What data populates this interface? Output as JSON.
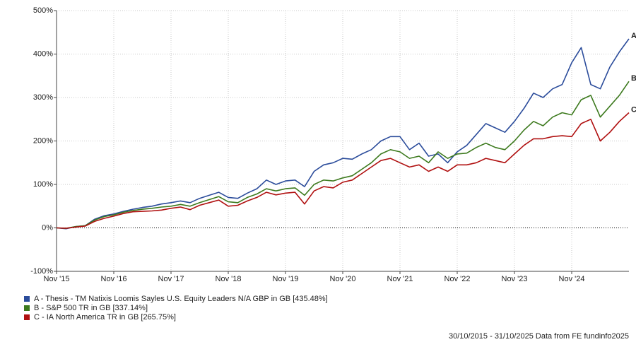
{
  "chart_data": {
    "type": "line",
    "categories": [
      "Nov '15",
      null,
      null,
      null,
      null,
      null,
      "Nov '16",
      null,
      null,
      null,
      null,
      null,
      "Nov '17",
      null,
      null,
      null,
      null,
      null,
      "Nov '18",
      null,
      null,
      null,
      null,
      null,
      "Nov '19",
      null,
      null,
      null,
      null,
      null,
      "Nov '20",
      null,
      null,
      null,
      null,
      null,
      "Nov '21",
      null,
      null,
      null,
      null,
      null,
      "Nov '22",
      null,
      null,
      null,
      null,
      null,
      "Nov '23",
      null,
      null,
      null,
      null,
      null,
      "Nov '24",
      null,
      null,
      null,
      null,
      null,
      null
    ],
    "ylim": [
      -100,
      500
    ],
    "yticks": [
      {
        "value": -100,
        "label": "-100%"
      },
      {
        "value": 0,
        "label": "0%"
      },
      {
        "value": 100,
        "label": "100%"
      },
      {
        "value": 200,
        "label": "200%"
      },
      {
        "value": 300,
        "label": "300%"
      },
      {
        "value": 400,
        "label": "400%"
      },
      {
        "value": 500,
        "label": "500%"
      }
    ],
    "grid": true,
    "series": [
      {
        "name": "A - Thesis - TM Natixis Loomis Sayles U.S. Equity Leaders N/A GBP in GB [435.48%]",
        "end_label": "A",
        "color": "#2b4c9b",
        "values": [
          0,
          -2,
          3,
          5,
          20,
          28,
          32,
          38,
          43,
          47,
          50,
          55,
          58,
          62,
          58,
          68,
          75,
          82,
          70,
          68,
          80,
          90,
          110,
          100,
          108,
          110,
          95,
          130,
          145,
          150,
          160,
          158,
          170,
          180,
          200,
          210,
          210,
          180,
          195,
          165,
          170,
          150,
          175,
          190,
          215,
          240,
          230,
          220,
          245,
          275,
          310,
          300,
          320,
          330,
          380,
          415,
          330,
          320,
          370,
          405,
          435
        ]
      },
      {
        "name": "B - S&P 500 TR in GB [337.14%]",
        "end_label": "B",
        "color": "#3d7a1e",
        "values": [
          0,
          -1,
          3,
          5,
          18,
          26,
          30,
          36,
          40,
          43,
          45,
          48,
          50,
          54,
          50,
          58,
          65,
          72,
          60,
          58,
          70,
          78,
          90,
          85,
          90,
          92,
          75,
          100,
          110,
          108,
          115,
          120,
          135,
          150,
          170,
          180,
          175,
          160,
          165,
          150,
          175,
          160,
          170,
          172,
          185,
          195,
          185,
          180,
          200,
          225,
          245,
          235,
          255,
          265,
          260,
          295,
          305,
          255,
          280,
          305,
          337
        ]
      },
      {
        "name": "C - IA North America TR in GB [265.75%]",
        "end_label": "C",
        "color": "#b01010",
        "values": [
          0,
          -1,
          2,
          4,
          15,
          22,
          27,
          33,
          37,
          38,
          39,
          41,
          45,
          48,
          42,
          52,
          58,
          64,
          50,
          52,
          62,
          70,
          82,
          76,
          80,
          82,
          55,
          85,
          95,
          92,
          105,
          110,
          125,
          140,
          155,
          160,
          150,
          140,
          145,
          130,
          140,
          130,
          145,
          145,
          150,
          160,
          155,
          150,
          170,
          190,
          205,
          205,
          210,
          212,
          210,
          240,
          250,
          200,
          220,
          245,
          265
        ]
      }
    ],
    "footer": "30/10/2015 - 31/10/2025 Data from FE fundinfo2025"
  }
}
